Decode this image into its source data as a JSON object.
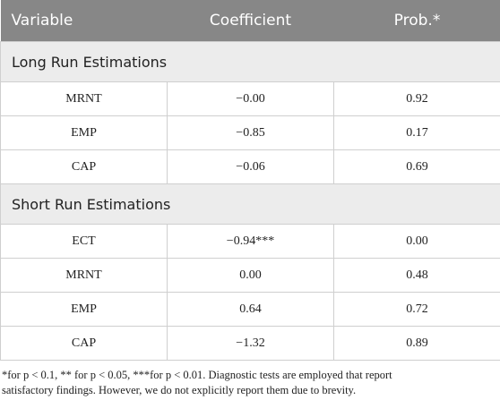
{
  "table": {
    "header": [
      "Variable",
      "Coefficient",
      "Prob.*"
    ],
    "sections": [
      {
        "title": "Long Run Estimations",
        "rows": [
          [
            "MRNT",
            "−0.00",
            "0.92"
          ],
          [
            "EMP",
            "−0.85",
            "0.17"
          ],
          [
            "CAP",
            "−0.06",
            "0.69"
          ]
        ]
      },
      {
        "title": "Short Run Estimations",
        "rows": [
          [
            "ECT",
            "−0.94***",
            "0.00"
          ],
          [
            "MRNT",
            "0.00",
            "0.48"
          ],
          [
            "EMP",
            "0.64",
            "0.72"
          ],
          [
            "CAP",
            "−1.32",
            "0.89"
          ]
        ]
      }
    ]
  },
  "footnote": [
    "*for p < 0.1, ** for p < 0.05, ***for p < 0.01. Diagnostic tests are employed that report",
    "satisfactory findings. However, we do not explicitly report them due to brevity."
  ]
}
